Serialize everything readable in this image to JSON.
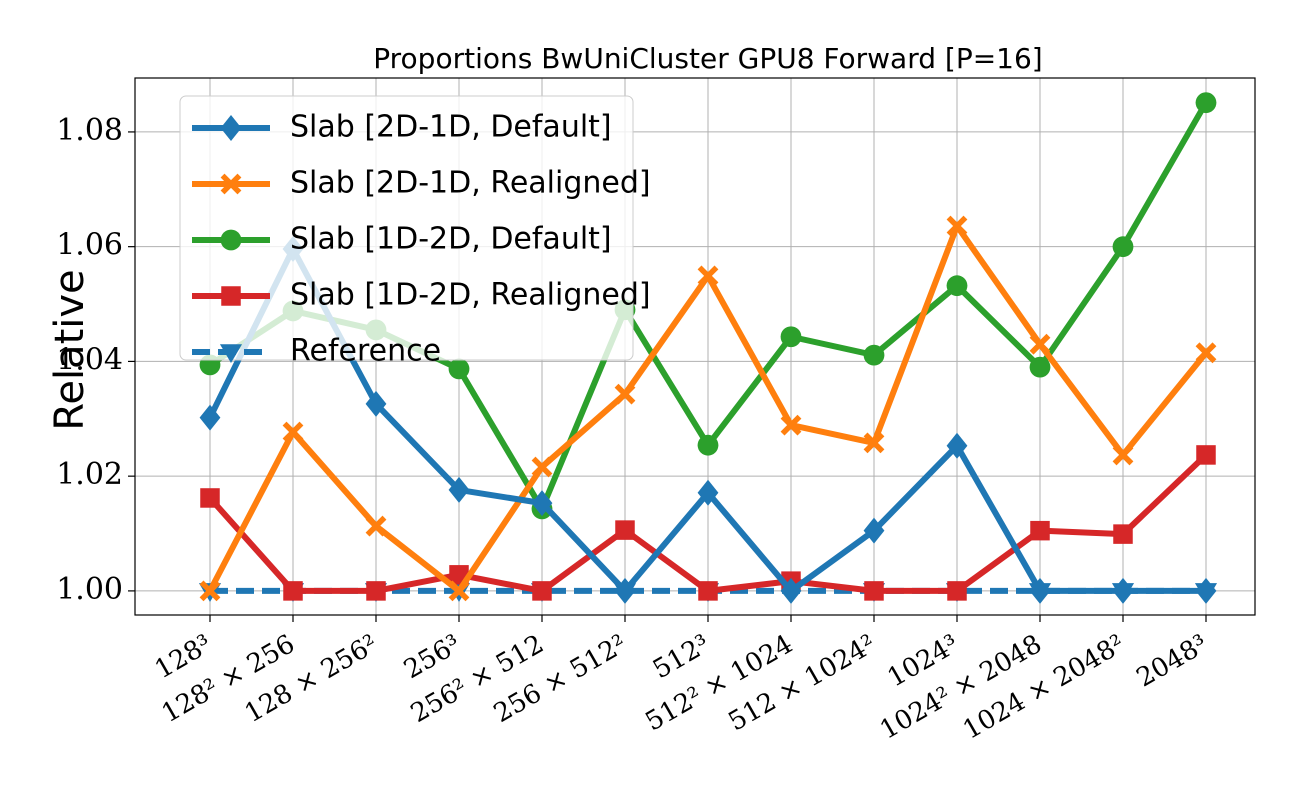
{
  "chart_data": {
    "type": "line",
    "title": "Proportions BwUniCluster GPU8 Forward [P=16]",
    "ylabel": "Relative",
    "categories": [
      "128³",
      "128² × 256",
      "128 × 256²",
      "256³",
      "256² × 512",
      "256 × 512²",
      "512³",
      "512² × 1024",
      "512 × 1024²",
      "1024³",
      "1024² × 2048",
      "1024 × 2048²",
      "2048³"
    ],
    "series": [
      {
        "name": "Slab [2D-1D, Default]",
        "color": "#1f77b4",
        "marker": "diamond",
        "linestyle": "solid",
        "values": [
          1.0302,
          1.0596,
          1.0326,
          1.0176,
          1.0153,
          1.0,
          1.0171,
          1.0,
          1.0105,
          1.0253,
          1.0,
          1.0,
          1.0
        ]
      },
      {
        "name": "Slab [2D-1D, Realigned]",
        "color": "#ff7f0e",
        "marker": "x",
        "linestyle": "solid",
        "values": [
          1.0,
          1.0277,
          1.0113,
          1.0,
          1.0216,
          1.0343,
          1.0549,
          1.0289,
          1.0258,
          1.0636,
          1.043,
          1.0237,
          1.0415
        ]
      },
      {
        "name": "Slab [1D-2D, Default]",
        "color": "#2ca02c",
        "marker": "circle",
        "linestyle": "solid",
        "values": [
          1.0394,
          1.0488,
          1.0455,
          1.0387,
          1.0143,
          1.049,
          1.0254,
          1.0443,
          1.0411,
          1.0532,
          1.039,
          1.06,
          1.0851
        ]
      },
      {
        "name": "Slab [1D-2D, Realigned]",
        "color": "#d62728",
        "marker": "square",
        "linestyle": "solid",
        "values": [
          1.0162,
          1.0,
          1.0,
          1.0028,
          1.0,
          1.0106,
          1.0,
          1.0017,
          1.0,
          1.0,
          1.0105,
          1.0099,
          1.0237
        ]
      },
      {
        "name": "Reference",
        "color": "#1f77b4",
        "marker": "triangle-down",
        "linestyle": "dashed",
        "values": [
          1.0,
          1.0,
          1.0,
          1.0,
          1.0,
          1.0,
          1.0,
          1.0,
          1.0,
          1.0,
          1.0,
          1.0,
          1.0
        ]
      }
    ],
    "ylim": [
      0.9958,
      1.0894
    ],
    "yticks": [
      {
        "value": 1.0,
        "label": "1.00"
      },
      1.02,
      1.04,
      1.06,
      1.08
    ],
    "grid": true,
    "legend": "upper left"
  }
}
